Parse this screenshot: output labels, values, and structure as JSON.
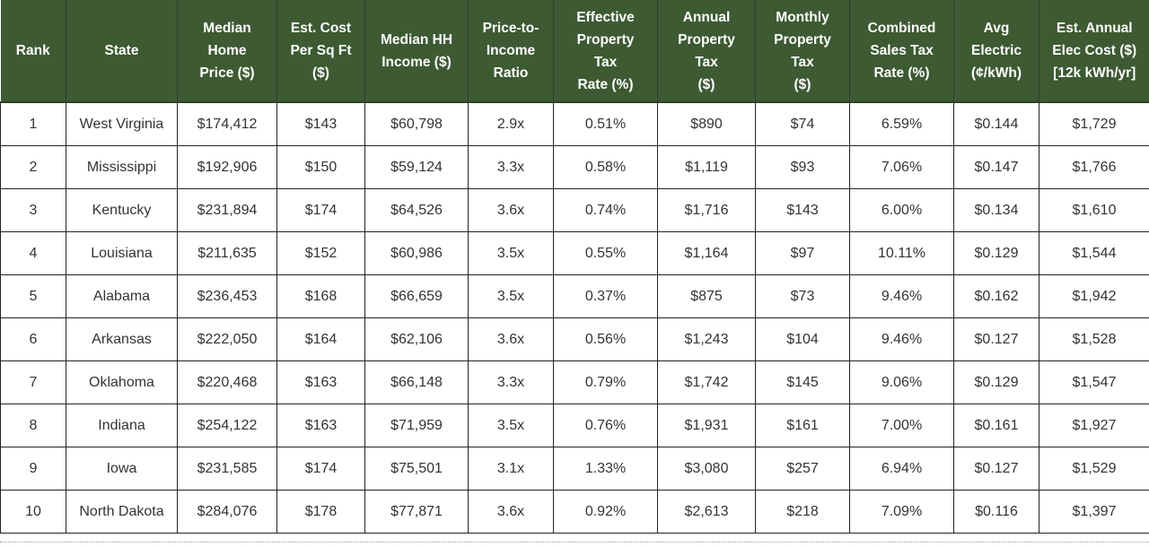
{
  "table": {
    "headers": [
      [
        "Rank"
      ],
      [
        "State"
      ],
      [
        "Median",
        "Home",
        "Price ($)"
      ],
      [
        "Est. Cost",
        "Per Sq Ft",
        "($)"
      ],
      [
        "Median HH",
        "Income ($)"
      ],
      [
        "Price-to-",
        "Income",
        "Ratio"
      ],
      [
        "Effective",
        "Property",
        "Tax",
        "Rate (%)"
      ],
      [
        "Annual",
        "Property",
        "Tax",
        "($)"
      ],
      [
        "Monthly",
        "Property",
        "Tax",
        "($)"
      ],
      [
        "Combined",
        "Sales Tax",
        "Rate (%)"
      ],
      [
        "Avg",
        "Electric",
        "(¢/kWh)"
      ],
      [
        "Est. Annual",
        "Elec Cost ($)",
        "[12k kWh/yr]"
      ]
    ],
    "rows": [
      [
        "1",
        "West Virginia",
        "$174,412",
        "$143",
        "$60,798",
        "2.9x",
        "0.51%",
        "$890",
        "$74",
        "6.59%",
        "$0.144",
        "$1,729"
      ],
      [
        "2",
        "Mississippi",
        "$192,906",
        "$150",
        "$59,124",
        "3.3x",
        "0.58%",
        "$1,119",
        "$93",
        "7.06%",
        "$0.147",
        "$1,766"
      ],
      [
        "3",
        "Kentucky",
        "$231,894",
        "$174",
        "$64,526",
        "3.6x",
        "0.74%",
        "$1,716",
        "$143",
        "6.00%",
        "$0.134",
        "$1,610"
      ],
      [
        "4",
        "Louisiana",
        "$211,635",
        "$152",
        "$60,986",
        "3.5x",
        "0.55%",
        "$1,164",
        "$97",
        "10.11%",
        "$0.129",
        "$1,544"
      ],
      [
        "5",
        "Alabama",
        "$236,453",
        "$168",
        "$66,659",
        "3.5x",
        "0.37%",
        "$875",
        "$73",
        "9.46%",
        "$0.162",
        "$1,942"
      ],
      [
        "6",
        "Arkansas",
        "$222,050",
        "$164",
        "$62,106",
        "3.6x",
        "0.56%",
        "$1,243",
        "$104",
        "9.46%",
        "$0.127",
        "$1,528"
      ],
      [
        "7",
        "Oklahoma",
        "$220,468",
        "$163",
        "$66,148",
        "3.3x",
        "0.79%",
        "$1,742",
        "$145",
        "9.06%",
        "$0.129",
        "$1,547"
      ],
      [
        "8",
        "Indiana",
        "$254,122",
        "$163",
        "$71,959",
        "3.5x",
        "0.76%",
        "$1,931",
        "$161",
        "7.00%",
        "$0.161",
        "$1,927"
      ],
      [
        "9",
        "Iowa",
        "$231,585",
        "$174",
        "$75,501",
        "3.1x",
        "1.33%",
        "$3,080",
        "$257",
        "6.94%",
        "$0.127",
        "$1,529"
      ],
      [
        "10",
        "North Dakota",
        "$284,076",
        "$178",
        "$77,871",
        "3.6x",
        "0.92%",
        "$2,613",
        "$218",
        "7.09%",
        "$0.116",
        "$1,397"
      ]
    ]
  },
  "colors": {
    "header_background": "#3d5a33",
    "header_text": "#ffffff",
    "cell_text": "#333333",
    "border": "#222222"
  }
}
